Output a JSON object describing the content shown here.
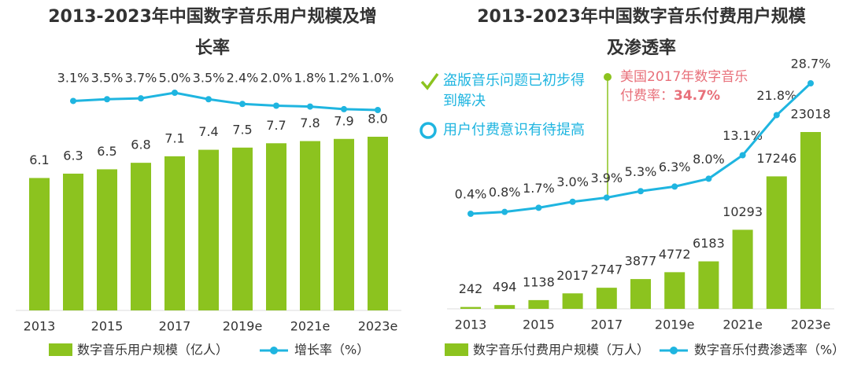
{
  "chart_data": [
    {
      "type": "combo",
      "title": "2013-2023年中国数字音乐用户规模及增长率",
      "categories": [
        "2013",
        null,
        "2015",
        null,
        "2017",
        null,
        "2019e",
        null,
        "2021e",
        null,
        "2023e"
      ],
      "series": [
        {
          "name": "数字音乐用户规模（亿人）",
          "type": "bar",
          "color": "#8cc31f",
          "values": [
            6.1,
            6.3,
            6.5,
            6.8,
            7.1,
            7.4,
            7.5,
            7.7,
            7.8,
            7.9,
            8.0
          ],
          "value_labels": [
            "6.1",
            "6.3",
            "6.5",
            "6.8",
            "7.1",
            "7.4",
            "7.5",
            "7.7",
            "7.8",
            "7.9",
            "8.0"
          ]
        },
        {
          "name": "增长率（%）",
          "type": "line",
          "axis": "y2",
          "color": "#1fb5e0",
          "values": [
            null,
            3.1,
            3.5,
            3.7,
            5.0,
            3.5,
            2.4,
            2.0,
            1.8,
            1.2,
            1.0
          ],
          "value_labels": [
            null,
            "3.1%",
            "3.5%",
            "3.7%",
            "5.0%",
            "3.5%",
            "2.4%",
            "2.0%",
            "1.8%",
            "1.2%",
            "1.0%"
          ]
        }
      ]
    },
    {
      "type": "combo",
      "title": "2013-2023年中国数字音乐付费用户规模及渗透率",
      "categories": [
        "2013",
        null,
        "2015",
        null,
        "2017",
        null,
        "2019e",
        null,
        "2021e",
        null,
        "2023e"
      ],
      "series": [
        {
          "name": "数字音乐付费用户规模（万人）",
          "type": "bar",
          "color": "#8cc31f",
          "values": [
            242,
            494,
            1138,
            2017,
            2747,
            3877,
            4772,
            6183,
            10293,
            17246,
            23018
          ]
        },
        {
          "name": "数字音乐付费渗透率（%）",
          "type": "line",
          "axis": "y2",
          "color": "#1fb5e0",
          "values": [
            0.4,
            0.8,
            1.7,
            3.0,
            3.9,
            5.3,
            6.3,
            8.0,
            13.1,
            21.8,
            28.7
          ],
          "value_labels": [
            "0.4%",
            "0.8%",
            "1.7%",
            "3.0%",
            "3.9%",
            "5.3%",
            "6.3%",
            "8.0%",
            "13.1%",
            "21.8%",
            "28.7%"
          ]
        }
      ],
      "annotations": [
        "盗版音乐问题已初步得到解决",
        "用户付费意识有待提高"
      ],
      "callout": {
        "text": "美国2017年数字音乐付费率：",
        "highlight": "34.7%"
      }
    }
  ]
}
